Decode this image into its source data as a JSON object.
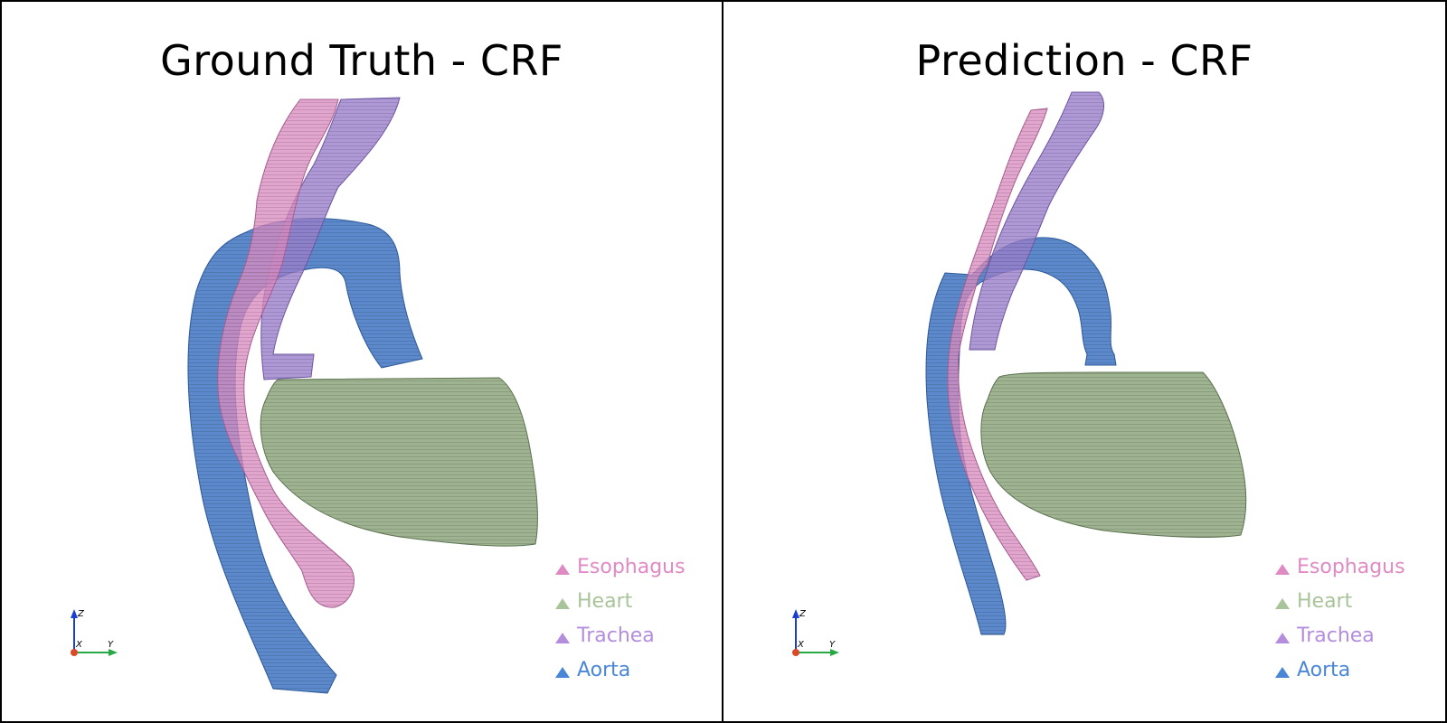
{
  "panels": [
    {
      "title": "Ground Truth - CRF",
      "legend": [
        {
          "label": "Esophagus",
          "color": "#e08ac4"
        },
        {
          "label": "Heart",
          "color": "#a9c49a"
        },
        {
          "label": "Trachea",
          "color": "#b48ddd"
        },
        {
          "label": "Aorta",
          "color": "#4a86d8"
        }
      ],
      "axes": {
        "z": "Z",
        "x": "X",
        "y": "Y"
      }
    },
    {
      "title": "Prediction - CRF",
      "legend": [
        {
          "label": "Esophagus",
          "color": "#e08ac4"
        },
        {
          "label": "Heart",
          "color": "#a9c49a"
        },
        {
          "label": "Trachea",
          "color": "#b48ddd"
        },
        {
          "label": "Aorta",
          "color": "#4a86d8"
        }
      ],
      "axes": {
        "z": "Z",
        "x": "X",
        "y": "Y"
      }
    }
  ],
  "organ_colors": {
    "esophagus": "#d98cc0",
    "heart": "#93ab84",
    "trachea": "#9a7fcc",
    "aorta": "#4d7fc7"
  }
}
